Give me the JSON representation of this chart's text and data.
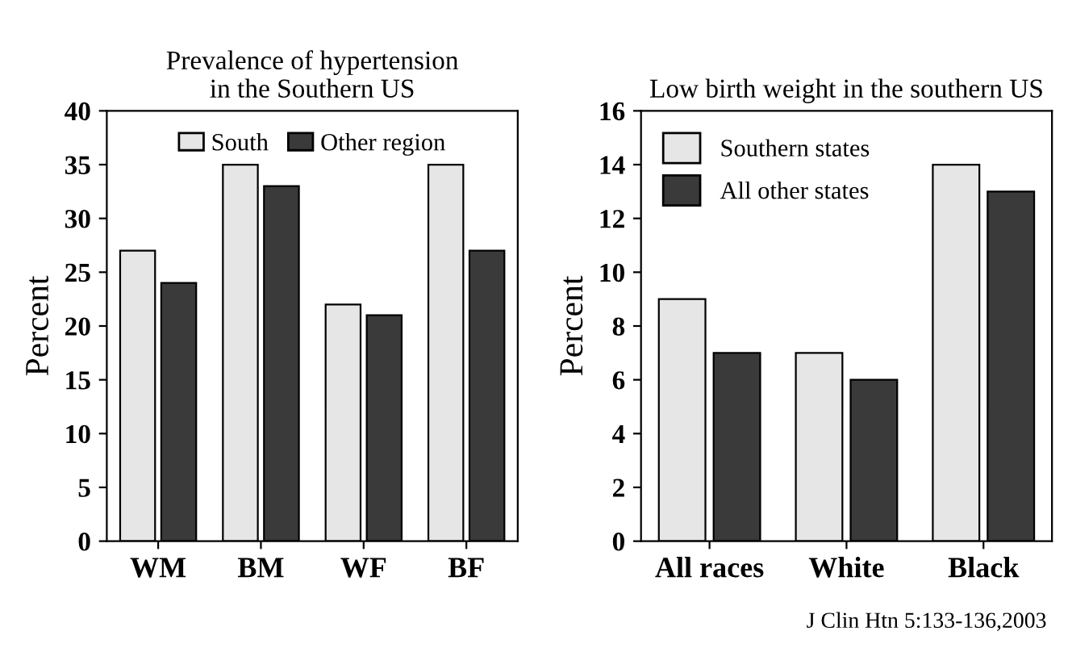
{
  "chart_data": [
    {
      "type": "bar",
      "title": "Prevalence of hypertension\nin the Southern US",
      "ylabel": "Percent",
      "categories": [
        "WM",
        "BM",
        "WF",
        "BF"
      ],
      "series": [
        {
          "name": "South",
          "color": "#e6e6e6",
          "values": [
            27,
            35,
            22,
            35
          ]
        },
        {
          "name": "Other region",
          "color": "#3a3a3a",
          "values": [
            24,
            33,
            21,
            27
          ]
        }
      ],
      "ylim": [
        0,
        40
      ],
      "yticks": [
        0,
        5,
        10,
        15,
        20,
        25,
        30,
        35,
        40
      ],
      "grid": false,
      "legend": "top"
    },
    {
      "type": "bar",
      "title": "Low birth weight in the southern US",
      "ylabel": "Percent",
      "categories": [
        "All races",
        "White",
        "Black"
      ],
      "series": [
        {
          "name": "Southern states",
          "color": "#e6e6e6",
          "values": [
            9,
            7,
            14
          ]
        },
        {
          "name": "All other states",
          "color": "#3a3a3a",
          "values": [
            7,
            6,
            13
          ]
        }
      ],
      "ylim": [
        0,
        16
      ],
      "yticks": [
        0,
        2,
        4,
        6,
        8,
        10,
        12,
        14,
        16
      ],
      "grid": false,
      "legend": "upper left",
      "annotations": [
        "J Clin Htn 5:133-136,2003"
      ]
    }
  ]
}
